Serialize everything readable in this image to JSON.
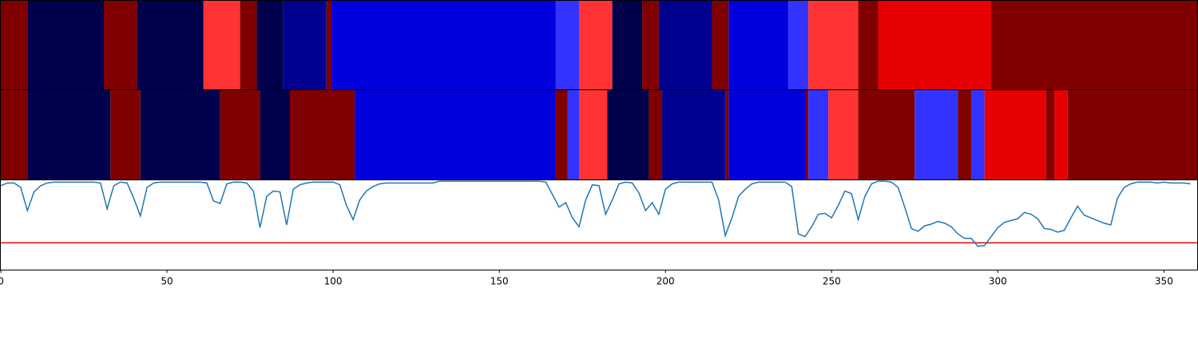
{
  "chart_data": [
    {
      "type": "segments",
      "xlim": [
        0,
        360
      ],
      "edges": [
        0,
        8,
        31,
        41,
        61,
        72,
        77,
        85,
        98,
        99.5,
        167,
        174,
        184,
        193,
        198,
        214,
        219,
        237,
        243,
        258,
        264,
        298,
        360
      ],
      "colors": [
        "#800000",
        "#00004c",
        "#800000",
        "#00004c",
        "#ff3333",
        "#800000",
        "#00004c",
        "#000090",
        "#800000",
        "#0000dd",
        "#3333ff",
        "#ff3333",
        "#00004c",
        "#800000",
        "#000090",
        "#800000",
        "#0000dd",
        "#3333ff",
        "#ff3333",
        "#800000",
        "#e60000",
        "#800000"
      ]
    },
    {
      "type": "segments",
      "xlim": [
        0,
        360
      ],
      "edges": [
        0,
        8,
        33,
        42,
        66,
        78,
        87,
        106.5,
        167,
        170.5,
        174,
        182.5,
        195,
        199,
        218,
        219,
        242,
        243,
        249,
        258,
        275,
        288,
        292,
        296,
        314.5,
        317,
        321,
        360
      ],
      "colors": [
        "#800000",
        "#00004c",
        "#800000",
        "#00004c",
        "#800000",
        "#00004c",
        "#800000",
        "#0000dd",
        "#800000",
        "#3333ff",
        "#ff3333",
        "#00004c",
        "#800000",
        "#000090",
        "#800000",
        "#0000dd",
        "#800000",
        "#3333ff",
        "#ff3333",
        "#800000",
        "#3333ff",
        "#800000",
        "#3333ff",
        "#e60000",
        "#800000",
        "#e60000",
        "#800000"
      ]
    },
    {
      "type": "line",
      "xlim": [
        0,
        360
      ],
      "ylim": [
        0,
        1
      ],
      "color": "#1f77b4",
      "hline": {
        "value": 0.3,
        "color": "#e00000"
      },
      "xticks": [
        0,
        50,
        100,
        150,
        200,
        250,
        300,
        350
      ],
      "x": [
        0,
        2,
        4,
        6,
        8,
        10,
        12,
        14,
        16,
        18,
        20,
        22,
        24,
        26,
        28,
        30,
        32,
        34,
        36,
        38,
        40,
        42,
        44,
        46,
        48,
        50,
        52,
        54,
        56,
        58,
        60,
        62,
        64,
        66,
        68,
        70,
        72,
        74,
        76,
        78,
        80,
        82,
        84,
        86,
        88,
        90,
        92,
        94,
        96,
        98,
        100,
        102,
        104,
        106,
        108,
        110,
        112,
        114,
        116,
        118,
        120,
        122,
        124,
        126,
        128,
        130,
        132,
        134,
        136,
        138,
        140,
        142,
        144,
        146,
        148,
        150,
        152,
        154,
        156,
        158,
        160,
        162,
        164,
        166,
        168,
        170,
        172,
        174,
        176,
        178,
        180,
        182,
        184,
        186,
        188,
        190,
        192,
        194,
        196,
        198,
        200,
        202,
        204,
        206,
        208,
        210,
        212,
        214,
        216,
        218,
        220,
        222,
        224,
        226,
        228,
        230,
        232,
        234,
        236,
        238,
        240,
        242,
        244,
        246,
        248,
        250,
        252,
        254,
        256,
        258,
        260,
        262,
        264,
        266,
        268,
        270,
        272,
        274,
        276,
        278,
        280,
        282,
        284,
        286,
        288,
        290,
        292,
        294,
        296,
        298,
        300,
        302,
        304,
        306,
        308,
        310,
        312,
        314,
        316,
        318,
        320,
        322,
        324,
        326,
        328,
        330,
        332,
        334,
        336,
        338,
        340,
        342,
        344,
        346,
        348,
        350,
        352,
        354,
        356,
        358
      ],
      "values": [
        0.94,
        0.97,
        0.97,
        0.92,
        0.66,
        0.87,
        0.94,
        0.97,
        0.98,
        0.98,
        0.98,
        0.98,
        0.98,
        0.98,
        0.98,
        0.97,
        0.68,
        0.94,
        0.98,
        0.97,
        0.8,
        0.6,
        0.92,
        0.97,
        0.98,
        0.98,
        0.98,
        0.98,
        0.98,
        0.98,
        0.98,
        0.97,
        0.77,
        0.74,
        0.96,
        0.98,
        0.98,
        0.97,
        0.88,
        0.47,
        0.82,
        0.88,
        0.87,
        0.5,
        0.9,
        0.95,
        0.97,
        0.98,
        0.98,
        0.98,
        0.98,
        0.95,
        0.72,
        0.56,
        0.78,
        0.88,
        0.93,
        0.96,
        0.97,
        0.97,
        0.97,
        0.97,
        0.97,
        0.97,
        0.97,
        0.97,
        0.99,
        0.99,
        0.99,
        0.99,
        0.99,
        0.99,
        0.99,
        0.99,
        0.99,
        0.99,
        0.99,
        0.99,
        0.99,
        0.99,
        0.99,
        0.99,
        0.98,
        0.84,
        0.7,
        0.75,
        0.58,
        0.48,
        0.78,
        0.95,
        0.94,
        0.62,
        0.78,
        0.96,
        0.98,
        0.97,
        0.86,
        0.66,
        0.75,
        0.62,
        0.9,
        0.96,
        0.98,
        0.98,
        0.98,
        0.98,
        0.98,
        0.98,
        0.78,
        0.38,
        0.58,
        0.82,
        0.9,
        0.96,
        0.98,
        0.98,
        0.98,
        0.98,
        0.98,
        0.93,
        0.4,
        0.37,
        0.48,
        0.62,
        0.63,
        0.58,
        0.72,
        0.88,
        0.85,
        0.56,
        0.82,
        0.96,
        0.99,
        0.99,
        0.98,
        0.92,
        0.7,
        0.46,
        0.43,
        0.49,
        0.51,
        0.54,
        0.52,
        0.48,
        0.4,
        0.35,
        0.35,
        0.26,
        0.27,
        0.37,
        0.47,
        0.53,
        0.55,
        0.57,
        0.64,
        0.62,
        0.57,
        0.46,
        0.45,
        0.42,
        0.44,
        0.58,
        0.71,
        0.61,
        0.58,
        0.55,
        0.52,
        0.5,
        0.8,
        0.92,
        0.96,
        0.98,
        0.98,
        0.98,
        0.97,
        0.98,
        0.97,
        0.97,
        0.97,
        0.96
      ]
    }
  ]
}
